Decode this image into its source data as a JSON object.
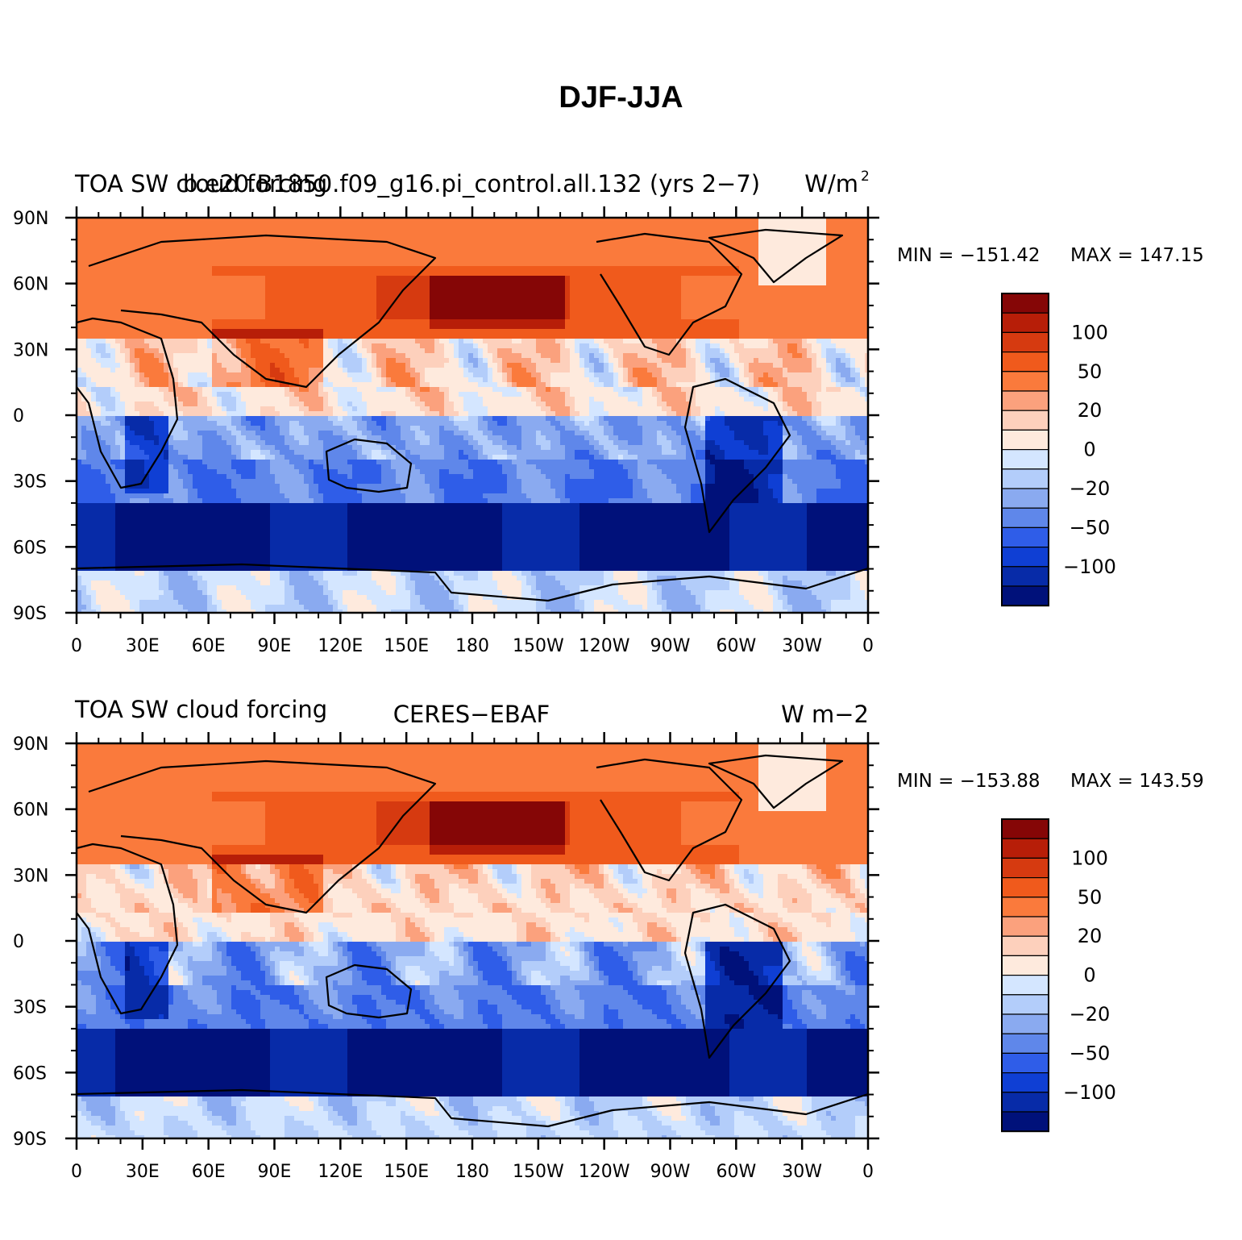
{
  "figure": {
    "title": "DJF-JJA"
  },
  "axes": {
    "lat_ticks": [
      "90N",
      "60N",
      "30N",
      "0",
      "30S",
      "60S",
      "90S"
    ],
    "lon_ticks": [
      "0",
      "30E",
      "60E",
      "90E",
      "120E",
      "150E",
      "180",
      "150W",
      "120W",
      "90W",
      "60W",
      "30W",
      "0"
    ]
  },
  "colorbar": {
    "colors": [
      "#850606",
      "#b71e08",
      "#d63a10",
      "#f05a1c",
      "#fa7a3c",
      "#fba17d",
      "#fdd0bc",
      "#feeadd",
      "#d4e6ff",
      "#b3cdfa",
      "#8aaaf0",
      "#5f87ea",
      "#2f5de8",
      "#0f3fd4",
      "#072ba8",
      "#00117a"
    ],
    "labels": [
      "100",
      "50",
      "20",
      "0",
      "−20",
      "−50",
      "−100"
    ]
  },
  "panels": [
    {
      "title_left": "TOA SW cloud forcing",
      "title_center": "b.e20.B1850.f09_g16.pi_control.all.132 (yrs 2−7)",
      "title_right_unit": "W/m",
      "title_right_sup": "2",
      "min_label": "MIN = −151.42",
      "max_label": "MAX = 147.15",
      "min": -151.42,
      "max": 147.15
    },
    {
      "title_left": "TOA SW cloud forcing",
      "title_center": "CERES−EBAF",
      "title_right_unit": "W m−2",
      "title_right_sup": "",
      "min_label": "MIN = −153.88",
      "max_label": "MAX = 143.59",
      "min": -153.88,
      "max": 143.59
    }
  ]
}
